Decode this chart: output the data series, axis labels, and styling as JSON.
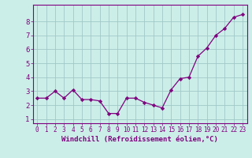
{
  "x": [
    0,
    1,
    2,
    3,
    4,
    5,
    6,
    7,
    8,
    9,
    10,
    11,
    12,
    13,
    14,
    15,
    16,
    17,
    18,
    19,
    20,
    21,
    22,
    23
  ],
  "y": [
    2.5,
    2.5,
    3.0,
    2.5,
    3.1,
    2.4,
    2.4,
    2.3,
    1.4,
    1.4,
    2.5,
    2.5,
    2.2,
    2.0,
    1.8,
    3.1,
    3.9,
    4.0,
    5.5,
    6.1,
    7.0,
    7.5,
    8.3,
    8.5
  ],
  "line_color": "#800080",
  "marker": "D",
  "marker_size": 2.2,
  "bg_color": "#cceee8",
  "grid_color": "#a0c8c8",
  "xlabel": "Windchill (Refroidissement éolien,°C)",
  "ylabel": "",
  "xlim": [
    -0.5,
    23.5
  ],
  "ylim": [
    0.7,
    9.2
  ],
  "xticks": [
    0,
    1,
    2,
    3,
    4,
    5,
    6,
    7,
    8,
    9,
    10,
    11,
    12,
    13,
    14,
    15,
    16,
    17,
    18,
    19,
    20,
    21,
    22,
    23
  ],
  "yticks": [
    1,
    2,
    3,
    4,
    5,
    6,
    7,
    8
  ],
  "tick_color": "#800080",
  "label_color": "#800080",
  "xtick_fontsize": 5.5,
  "ytick_fontsize": 6.5,
  "xlabel_fontsize": 6.5
}
